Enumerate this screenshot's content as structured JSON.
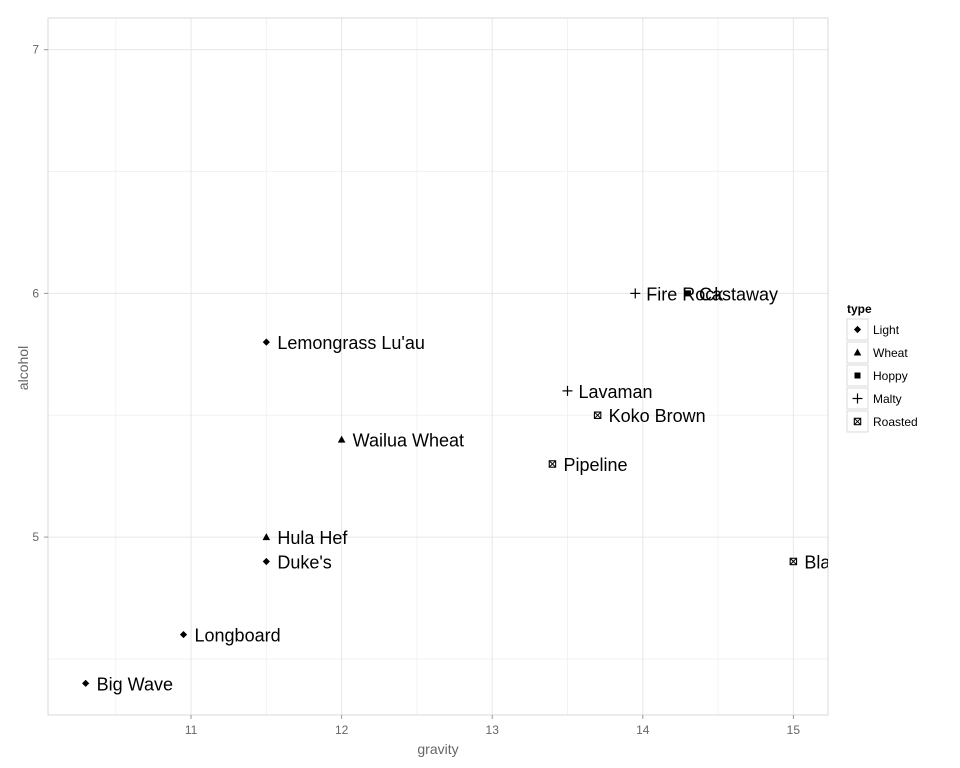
{
  "chart_data": {
    "type": "scatter",
    "xlabel": "gravity",
    "ylabel": "alcohol",
    "xlim": [
      10.05,
      15.23
    ],
    "ylim": [
      4.27,
      7.13
    ],
    "x_ticks": [
      11,
      12,
      13,
      14,
      15
    ],
    "y_ticks": [
      5,
      6,
      7
    ],
    "grid": true,
    "legend": {
      "title": "type",
      "position": "right",
      "entries": [
        {
          "name": "Light",
          "shape": "diamond"
        },
        {
          "name": "Wheat",
          "shape": "triangle"
        },
        {
          "name": "Hoppy",
          "shape": "square"
        },
        {
          "name": "Malty",
          "shape": "plus"
        },
        {
          "name": "Roasted",
          "shape": "square-x"
        }
      ]
    },
    "points": [
      {
        "label": "Big Wave",
        "x": 10.3,
        "y": 4.4,
        "type": "Light"
      },
      {
        "label": "Longboard",
        "x": 10.95,
        "y": 4.6,
        "type": "Light"
      },
      {
        "label": "Duke's",
        "x": 11.5,
        "y": 4.9,
        "type": "Light"
      },
      {
        "label": "Hula Hef",
        "x": 11.5,
        "y": 5.0,
        "type": "Wheat"
      },
      {
        "label": "Lemongrass Lu'au",
        "x": 11.5,
        "y": 5.8,
        "type": "Light"
      },
      {
        "label": "Wailua Wheat",
        "x": 12.0,
        "y": 5.4,
        "type": "Wheat"
      },
      {
        "label": "Pipeline",
        "x": 13.4,
        "y": 5.3,
        "type": "Roasted"
      },
      {
        "label": "Koko Brown",
        "x": 13.7,
        "y": 5.5,
        "type": "Roasted"
      },
      {
        "label": "Lavaman",
        "x": 13.5,
        "y": 5.6,
        "type": "Malty"
      },
      {
        "label": "Fire Rock",
        "x": 13.95,
        "y": 6.0,
        "type": "Malty"
      },
      {
        "label": "Castaway",
        "x": 14.3,
        "y": 6.0,
        "type": "Hoppy"
      },
      {
        "label": "Bla",
        "x": 15.0,
        "y": 4.9,
        "type": "Roasted"
      }
    ]
  }
}
